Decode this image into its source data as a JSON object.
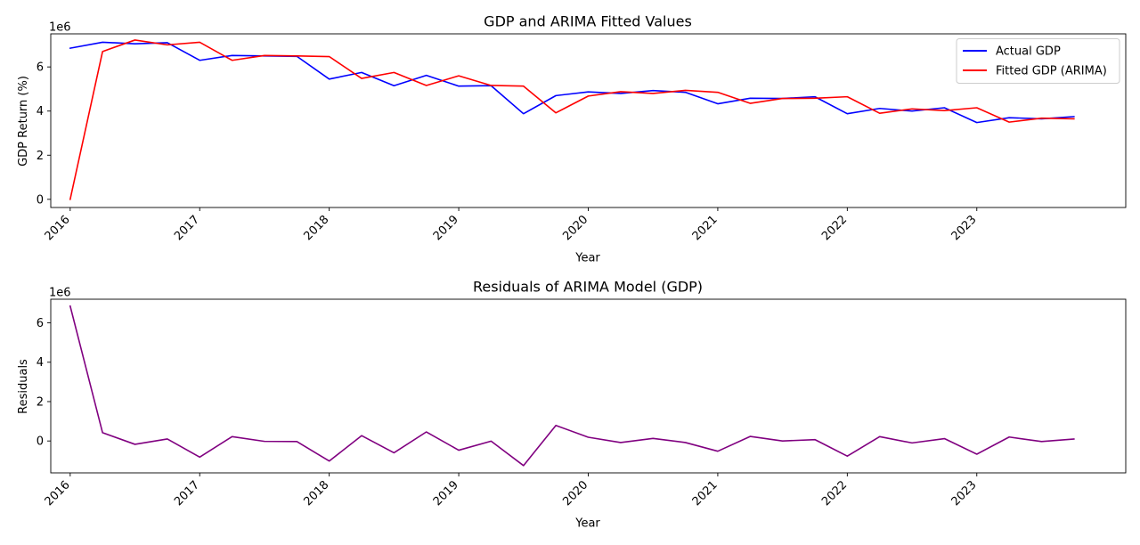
{
  "chart_data": [
    {
      "type": "line",
      "title": "GDP and ARIMA Fitted Values",
      "xlabel": "Year",
      "ylabel": "GDP Return (%)",
      "y_offset_text": "1e6",
      "xlim": [
        2015.85,
        2024.15
      ],
      "ylim": [
        -0.37,
        7.5
      ],
      "x_ticks": [
        2016,
        2017,
        2018,
        2019,
        2020,
        2021,
        2022,
        2023
      ],
      "x_tick_labels": [
        "2016",
        "2017",
        "2018",
        "2019",
        "2020",
        "2021",
        "2022",
        "2023"
      ],
      "y_ticks": [
        0,
        2,
        4,
        6
      ],
      "y_tick_labels": [
        "0",
        "2",
        "4",
        "6"
      ],
      "x": [
        2016.0,
        2016.25,
        2016.5,
        2016.75,
        2017.0,
        2017.25,
        2017.5,
        2017.75,
        2018.0,
        2018.25,
        2018.5,
        2018.75,
        2019.0,
        2019.25,
        2019.5,
        2019.75,
        2020.0,
        2020.25,
        2020.5,
        2020.75,
        2021.0,
        2021.25,
        2021.5,
        2021.75,
        2022.0,
        2022.25,
        2022.5,
        2022.75,
        2023.0,
        2023.25,
        2023.5,
        2023.75
      ],
      "legend_position": "upper right",
      "series": [
        {
          "name": "Actual GDP",
          "color": "#0000ff",
          "values": [
            6.85,
            7.12,
            7.05,
            7.1,
            6.3,
            6.52,
            6.5,
            6.48,
            5.45,
            5.75,
            5.15,
            5.62,
            5.13,
            5.15,
            3.88,
            4.7,
            4.87,
            4.8,
            4.93,
            4.85,
            4.33,
            4.58,
            4.57,
            4.65,
            3.88,
            4.12,
            4.0,
            4.15,
            3.48,
            3.7,
            3.65,
            3.75
          ]
        },
        {
          "name": "Fitted GDP (ARIMA)",
          "color": "#ff0000",
          "values": [
            0.0,
            6.7,
            7.22,
            7.0,
            7.12,
            6.3,
            6.52,
            6.5,
            6.47,
            5.48,
            5.75,
            5.16,
            5.6,
            5.16,
            5.13,
            3.92,
            4.68,
            4.88,
            4.8,
            4.94,
            4.85,
            4.35,
            4.57,
            4.58,
            4.65,
            3.9,
            4.1,
            4.02,
            4.15,
            3.5,
            3.68,
            3.65
          ]
        }
      ]
    },
    {
      "type": "line",
      "title": "Residuals of ARIMA Model (GDP)",
      "xlabel": "Year",
      "ylabel": "Residuals",
      "y_offset_text": "1e6",
      "xlim": [
        2015.85,
        2024.15
      ],
      "ylim": [
        -1.62,
        7.2
      ],
      "x_ticks": [
        2016,
        2017,
        2018,
        2019,
        2020,
        2021,
        2022,
        2023
      ],
      "x_tick_labels": [
        "2016",
        "2017",
        "2018",
        "2019",
        "2020",
        "2021",
        "2022",
        "2023"
      ],
      "y_ticks": [
        0,
        2,
        4,
        6
      ],
      "y_tick_labels": [
        "0",
        "2",
        "4",
        "6"
      ],
      "x": [
        2016.0,
        2016.25,
        2016.5,
        2016.75,
        2017.0,
        2017.25,
        2017.5,
        2017.75,
        2018.0,
        2018.25,
        2018.5,
        2018.75,
        2019.0,
        2019.25,
        2019.5,
        2019.75,
        2020.0,
        2020.25,
        2020.5,
        2020.75,
        2021.0,
        2021.25,
        2021.5,
        2021.75,
        2022.0,
        2022.25,
        2022.5,
        2022.75,
        2023.0,
        2023.25,
        2023.5,
        2023.75
      ],
      "series": [
        {
          "name": "Residuals",
          "color": "#800080",
          "values": [
            6.85,
            0.42,
            -0.17,
            0.1,
            -0.82,
            0.22,
            -0.02,
            -0.03,
            -1.02,
            0.27,
            -0.6,
            0.46,
            -0.47,
            -0.01,
            -1.25,
            0.79,
            0.19,
            -0.08,
            0.13,
            -0.08,
            -0.52,
            0.23,
            0.0,
            0.07,
            -0.77,
            0.22,
            -0.1,
            0.12,
            -0.67,
            0.2,
            -0.03,
            0.1
          ]
        }
      ]
    }
  ]
}
